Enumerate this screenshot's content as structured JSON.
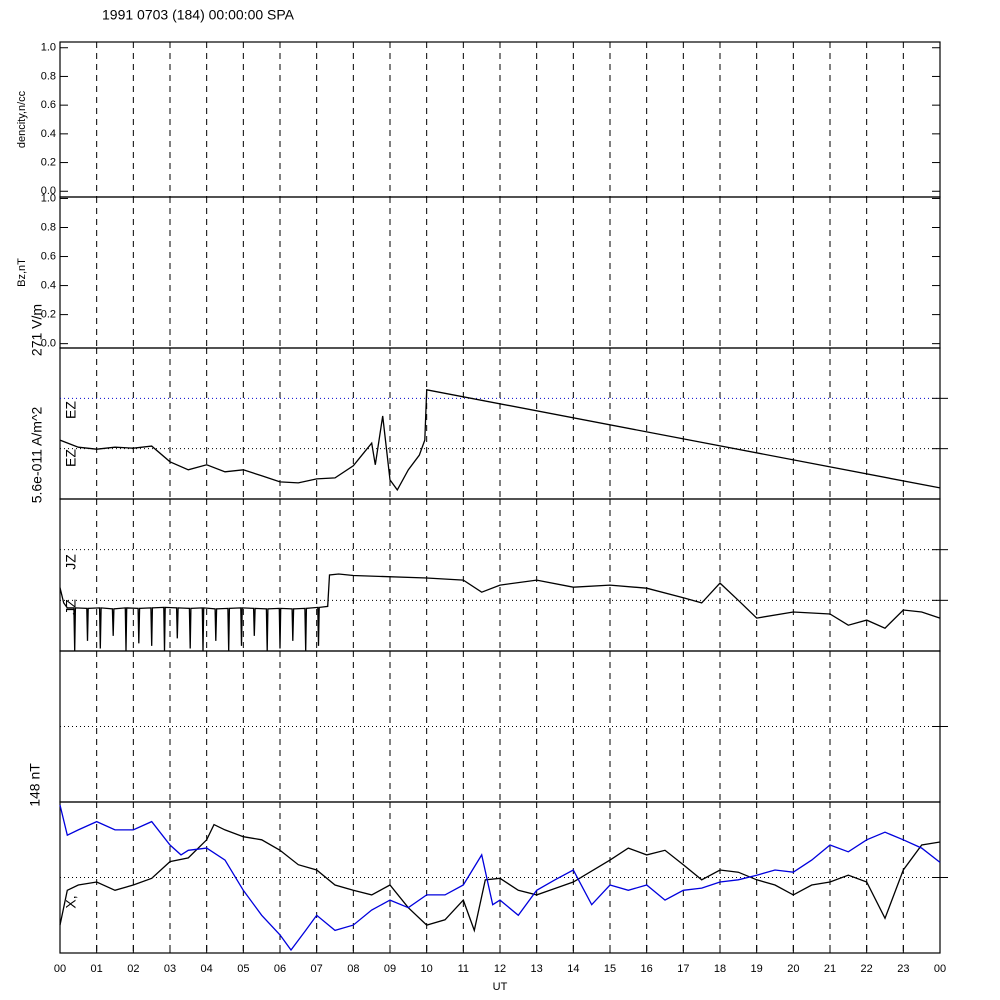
{
  "title": "1991 0703 (184) 00:00:00 SPA",
  "chart_data": [
    {
      "type": "line",
      "ylabel": "dencity,n/cc",
      "xlim": [
        0,
        24
      ],
      "ylim": [
        -0.04,
        1.04
      ],
      "yticks": [
        {
          "value": 0,
          "label": "0.0"
        },
        {
          "value": 0.2,
          "label": "0.2"
        },
        {
          "value": 0.4,
          "label": "0.4"
        },
        {
          "value": 0.6,
          "label": "0.6"
        },
        {
          "value": 0.8,
          "label": "0.8"
        },
        {
          "value": 1,
          "label": "1.0"
        }
      ],
      "series": []
    },
    {
      "type": "line",
      "ylabel": "Bz,nT",
      "xlim": [
        0,
        24
      ],
      "ylim": [
        -0.03,
        1.01
      ],
      "yticks": [
        {
          "value": 0,
          "label": "0.0"
        },
        {
          "value": 0.2,
          "label": "0.2"
        },
        {
          "value": 0.4,
          "label": "0.4"
        },
        {
          "value": 0.6,
          "label": "0.6"
        },
        {
          "value": 0.8,
          "label": "0.8"
        },
        {
          "value": 1,
          "label": "1.0"
        }
      ],
      "series": []
    },
    {
      "type": "line",
      "scale_label": "271 V/m",
      "annotations": [
        "EZ",
        "EZ"
      ],
      "xlim": [
        0,
        24
      ],
      "ylim": [
        0,
        3
      ],
      "ygrid": [
        1,
        2
      ],
      "ygrid_colors": [
        "#000000",
        "#0000cc"
      ],
      "series": [
        {
          "color": "#000000",
          "x": [
            0,
            0.5,
            1,
            1.5,
            2,
            2.5,
            3,
            3.5,
            4,
            4.5,
            5,
            5.5,
            6,
            6.5,
            7,
            7.5,
            8,
            8.3,
            8.5,
            8.6,
            8.8,
            9,
            9.2,
            9.5,
            9.8,
            9.95,
            10,
            24
          ],
          "values": [
            1.17,
            1.03,
            0.99,
            1.03,
            1.01,
            1.05,
            0.74,
            0.58,
            0.68,
            0.54,
            0.58,
            0.46,
            0.34,
            0.32,
            0.4,
            0.42,
            0.66,
            0.93,
            1.11,
            0.68,
            1.65,
            0.38,
            0.18,
            0.58,
            0.87,
            1.17,
            2.17,
            0.22
          ]
        }
      ]
    },
    {
      "type": "line",
      "scale_label": "5.6e-011 A/m^2",
      "annotations": [
        "JZ",
        "JZ"
      ],
      "xlim": [
        0,
        24
      ],
      "ylim": [
        0,
        3
      ],
      "ygrid": [
        1,
        2
      ],
      "ygrid_colors": [
        "#000000",
        "#000000"
      ],
      "series": [
        {
          "color": "#000000",
          "x": [
            0,
            0.1,
            0.2,
            0.38,
            0.4,
            0.42,
            0.73,
            0.75,
            0.77,
            1.08,
            1.1,
            1.12,
            1.43,
            1.45,
            1.47,
            1.78,
            1.8,
            1.82,
            2.13,
            2.15,
            2.17,
            2.48,
            2.5,
            2.52,
            2.83,
            2.85,
            2.87,
            3.18,
            3.2,
            3.22,
            3.53,
            3.55,
            3.57,
            3.88,
            3.9,
            3.92,
            4.23,
            4.25,
            4.27,
            4.58,
            4.6,
            4.62,
            4.93,
            4.95,
            4.97,
            5.28,
            5.3,
            5.32,
            5.63,
            5.65,
            5.67,
            5.98,
            6.0,
            6.02,
            6.33,
            6.35,
            6.37,
            6.68,
            6.7,
            6.72,
            7.03,
            7.05,
            7.07,
            7.3,
            7.35,
            7.6,
            8.0,
            10.0,
            11.0,
            11.5,
            12,
            13,
            14,
            15,
            16,
            17,
            17.5,
            18,
            18.5,
            19,
            20,
            21,
            21.5,
            22,
            22.5,
            23,
            23.5,
            24
          ],
          "values": [
            1.25,
            0.95,
            0.85,
            0.85,
            0,
            0.85,
            0.84,
            0.2,
            0.84,
            0.85,
            0.05,
            0.85,
            0.83,
            0.3,
            0.83,
            0.85,
            0,
            0.85,
            0.84,
            0.15,
            0.84,
            0.85,
            0.1,
            0.85,
            0.86,
            0,
            0.86,
            0.85,
            0.25,
            0.85,
            0.84,
            0.05,
            0.84,
            0.85,
            0,
            0.85,
            0.83,
            0.2,
            0.83,
            0.84,
            0,
            0.84,
            0.85,
            0.1,
            0.85,
            0.84,
            0.3,
            0.84,
            0.83,
            0,
            0.83,
            0.84,
            0.05,
            0.84,
            0.83,
            0.2,
            0.83,
            0.84,
            0,
            0.84,
            0.86,
            0.1,
            0.86,
            0.88,
            1.5,
            1.52,
            1.49,
            1.44,
            1.4,
            1.16,
            1.3,
            1.4,
            1.26,
            1.3,
            1.24,
            1.05,
            0.95,
            1.34,
            1.0,
            0.65,
            0.77,
            0.73,
            0.51,
            0.61,
            0.45,
            0.81,
            0.77,
            0.65
          ]
        }
      ]
    },
    {
      "type": "line",
      "xlim": [
        0,
        24
      ],
      "ylim": [
        0,
        2
      ],
      "ygrid": [
        1
      ],
      "ygrid_colors": [
        "#000000"
      ],
      "series": []
    },
    {
      "type": "line",
      "scale_label": "148 nT",
      "annotations": [
        "X,"
      ],
      "xlabel": "UT",
      "xlim": [
        0,
        24
      ],
      "ylim": [
        0,
        2
      ],
      "ygrid": [
        1
      ],
      "ygrid_colors": [
        "#000000"
      ],
      "xticks": [
        {
          "value": 0,
          "label": "00"
        },
        {
          "value": 1,
          "label": "01"
        },
        {
          "value": 2,
          "label": "02"
        },
        {
          "value": 3,
          "label": "03"
        },
        {
          "value": 4,
          "label": "04"
        },
        {
          "value": 5,
          "label": "05"
        },
        {
          "value": 6,
          "label": "06"
        },
        {
          "value": 7,
          "label": "07"
        },
        {
          "value": 8,
          "label": "08"
        },
        {
          "value": 9,
          "label": "09"
        },
        {
          "value": 10,
          "label": "10"
        },
        {
          "value": 11,
          "label": "11"
        },
        {
          "value": 12,
          "label": "12"
        },
        {
          "value": 13,
          "label": "13"
        },
        {
          "value": 14,
          "label": "14"
        },
        {
          "value": 15,
          "label": "15"
        },
        {
          "value": 16,
          "label": "16"
        },
        {
          "value": 17,
          "label": "17"
        },
        {
          "value": 18,
          "label": "18"
        },
        {
          "value": 19,
          "label": "19"
        },
        {
          "value": 20,
          "label": "20"
        },
        {
          "value": 21,
          "label": "21"
        },
        {
          "value": 22,
          "label": "22"
        },
        {
          "value": 23,
          "label": "23"
        },
        {
          "value": 24,
          "label": "00"
        }
      ],
      "series": [
        {
          "color": "#000000",
          "x": [
            0,
            0.2,
            0.5,
            1,
            1.5,
            2,
            2.5,
            3,
            3.5,
            4,
            4.2,
            4.5,
            5,
            5.5,
            6,
            6.5,
            7,
            7.5,
            8,
            8.5,
            9,
            9.5,
            10,
            10.5,
            11,
            11.3,
            11.6,
            12,
            12.5,
            13,
            14,
            15,
            15.5,
            16,
            16.5,
            17,
            17.5,
            18,
            18.5,
            19,
            19.5,
            20,
            20.5,
            21,
            21.5,
            22,
            22.5,
            23,
            23.5,
            24
          ],
          "values": [
            0.37,
            0.83,
            0.9,
            0.94,
            0.83,
            0.9,
            0.99,
            1.21,
            1.26,
            1.5,
            1.7,
            1.63,
            1.54,
            1.5,
            1.36,
            1.17,
            1.1,
            0.9,
            0.83,
            0.77,
            0.9,
            0.6,
            0.37,
            0.44,
            0.7,
            0.3,
            0.97,
            0.99,
            0.83,
            0.77,
            0.94,
            1.23,
            1.39,
            1.3,
            1.36,
            1.17,
            0.97,
            1.1,
            1.07,
            0.97,
            0.9,
            0.77,
            0.9,
            0.94,
            1.03,
            0.94,
            0.46,
            1.1,
            1.43,
            1.47
          ]
        },
        {
          "color": "#0000dd",
          "x": [
            0,
            0.2,
            0.5,
            1,
            1.5,
            2,
            2.5,
            3,
            3.3,
            3.5,
            4,
            4.5,
            5,
            5.5,
            6,
            6.3,
            6.7,
            7,
            7.5,
            8,
            8.5,
            9,
            9.5,
            10,
            10.5,
            11,
            11.5,
            11.8,
            12,
            12.5,
            13,
            13.5,
            14,
            14.5,
            15,
            15.5,
            16,
            16.5,
            17,
            17.5,
            18,
            18.5,
            19,
            19.5,
            20,
            20.5,
            21,
            21.5,
            22,
            22.5,
            23,
            23.5,
            24
          ],
          "values": [
            1.96,
            1.56,
            1.63,
            1.74,
            1.63,
            1.63,
            1.74,
            1.43,
            1.3,
            1.36,
            1.39,
            1.23,
            0.83,
            0.5,
            0.24,
            0.04,
            0.3,
            0.5,
            0.3,
            0.37,
            0.57,
            0.7,
            0.6,
            0.77,
            0.77,
            0.9,
            1.3,
            0.64,
            0.7,
            0.5,
            0.83,
            0.97,
            1.1,
            0.64,
            0.9,
            0.83,
            0.9,
            0.7,
            0.83,
            0.86,
            0.94,
            0.97,
            1.03,
            1.1,
            1.07,
            1.23,
            1.43,
            1.34,
            1.5,
            1.6,
            1.5,
            1.39,
            1.2
          ]
        }
      ]
    }
  ]
}
